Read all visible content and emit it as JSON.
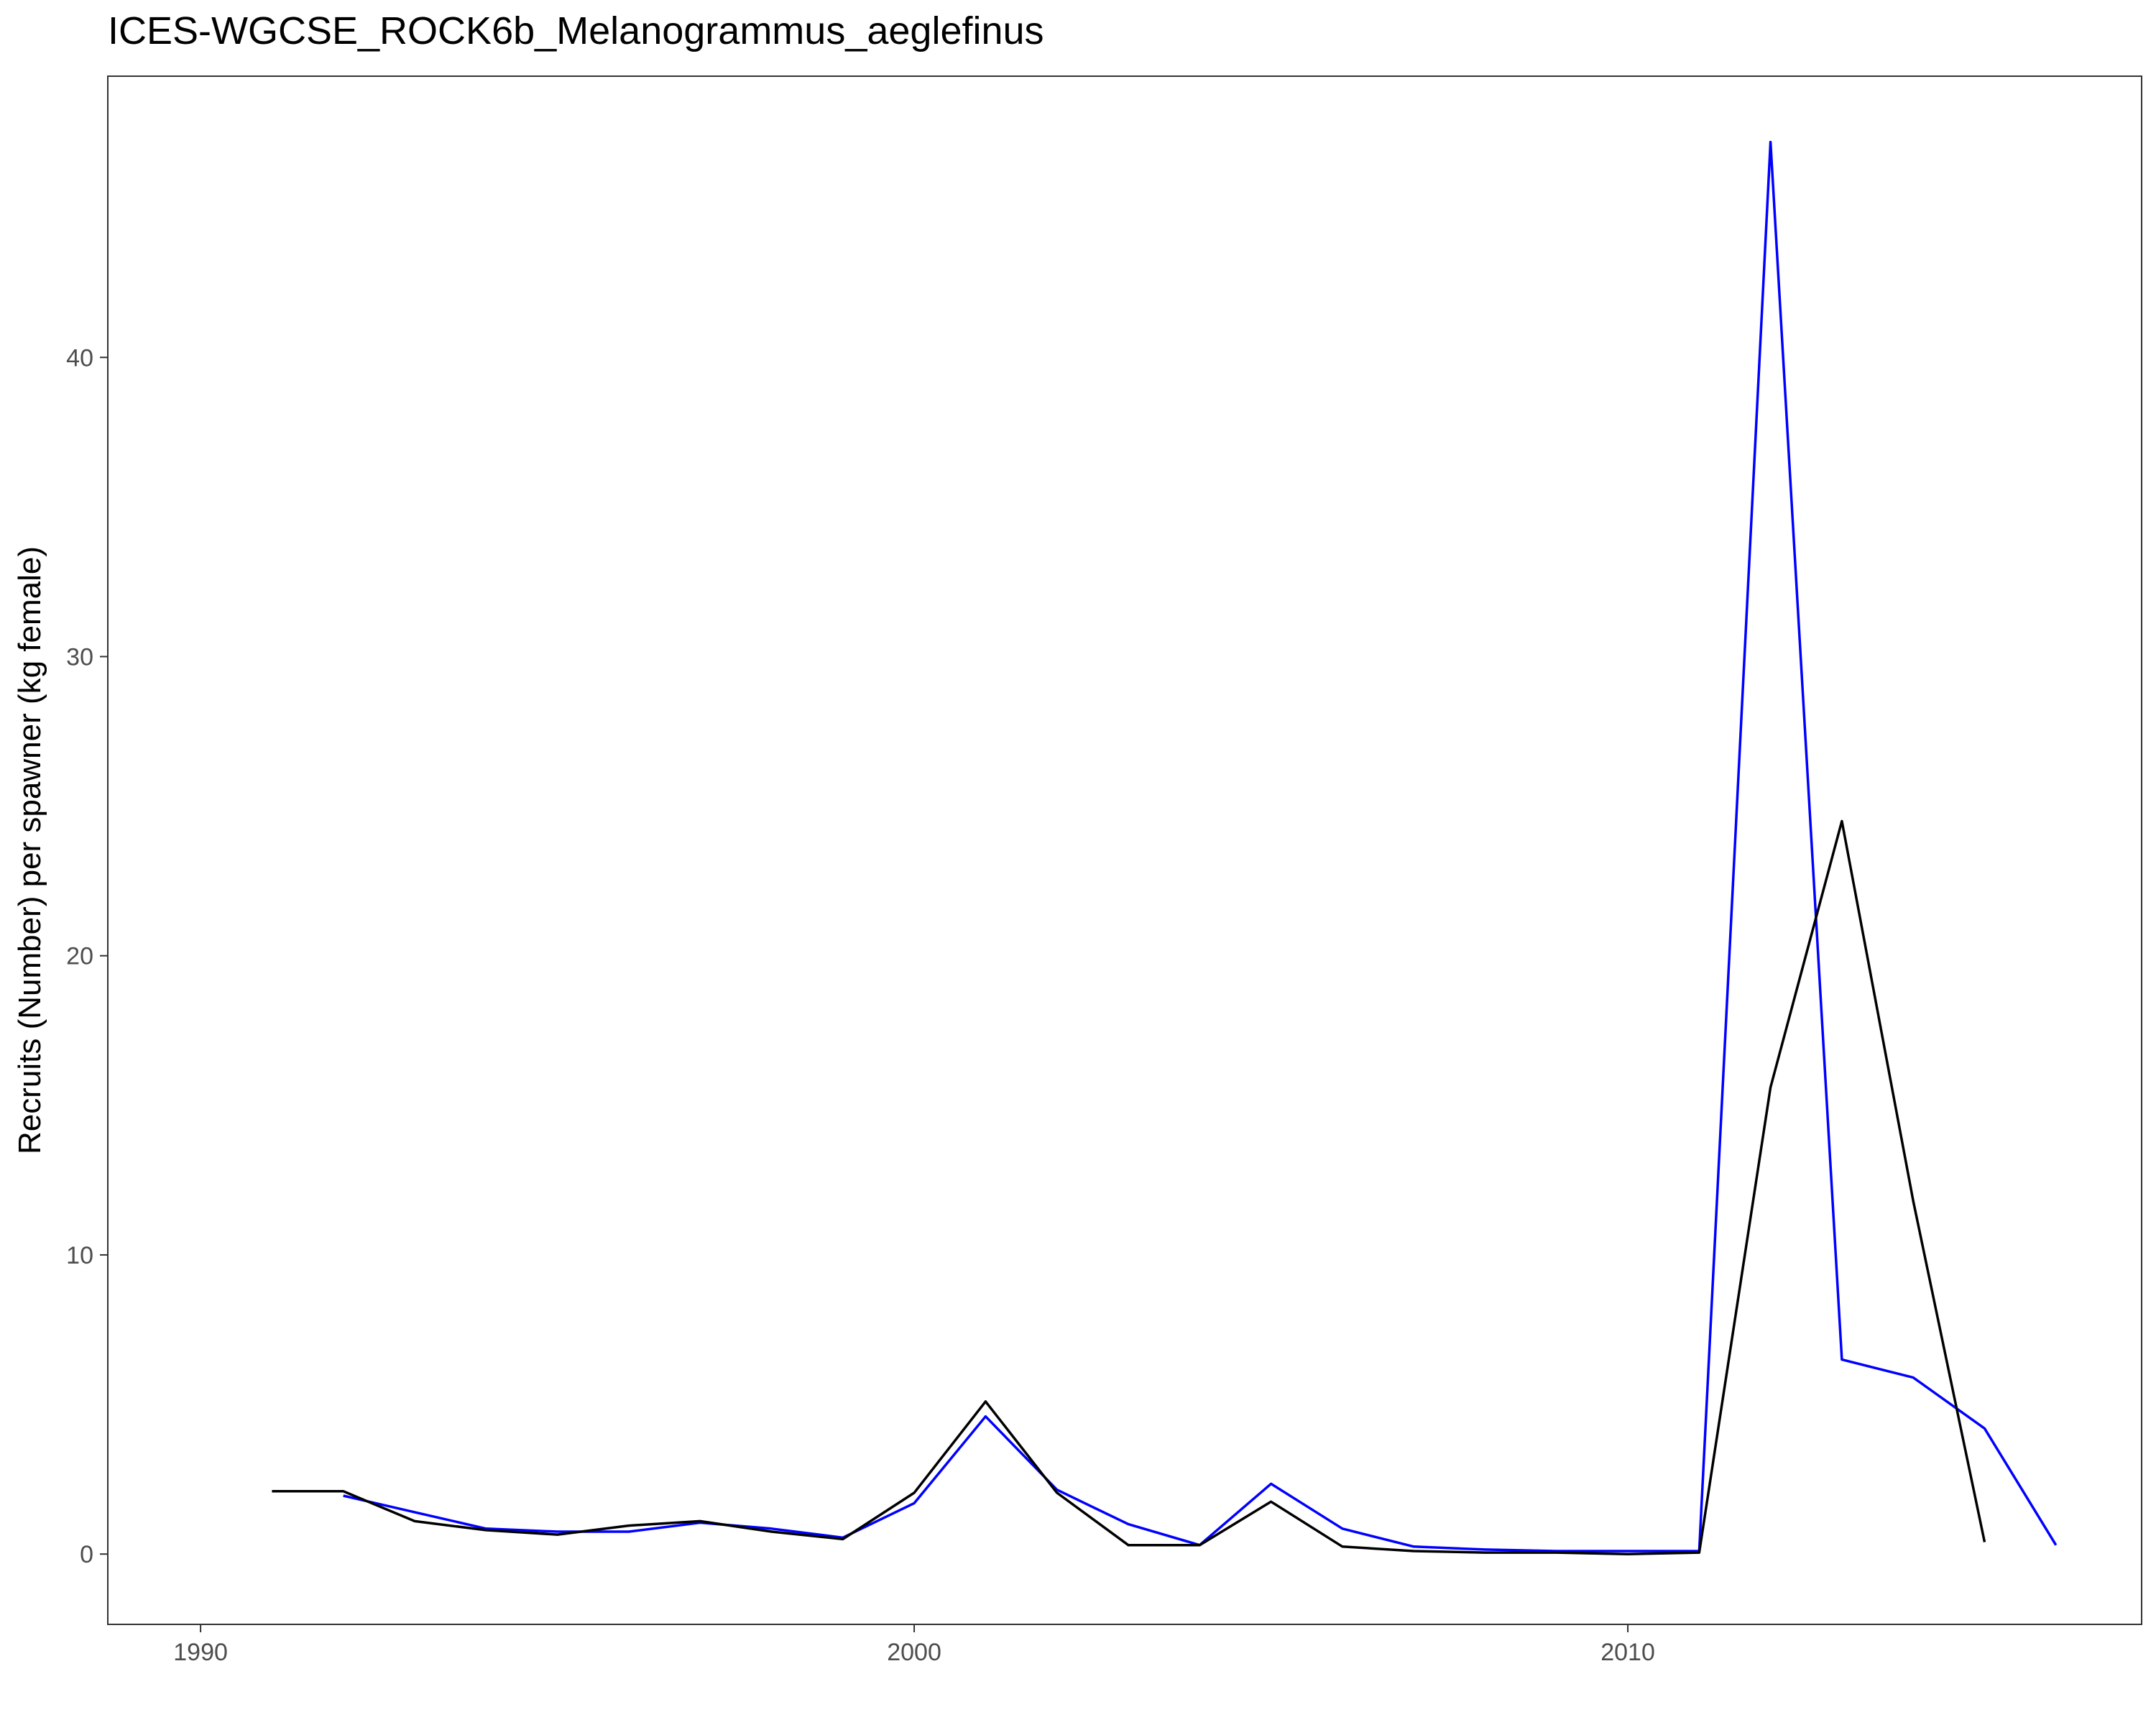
{
  "chart_data": {
    "type": "line",
    "title": "ICES-WGCSE_ROCK6b_Melanogrammus_aeglefinus",
    "xlabel": "",
    "ylabel": "Recruits (Number) per spawner (kg female)",
    "xlim": [
      1988.7,
      2017.2
    ],
    "ylim": [
      -2.35,
      49.4
    ],
    "x_ticks": [
      1990,
      2000,
      2010
    ],
    "y_ticks": [
      0,
      10,
      20,
      30,
      40
    ],
    "grid": false,
    "legend": "none",
    "series": [
      {
        "color": "#0000ff",
        "x": [
          1992,
          1993,
          1994,
          1995,
          1996,
          1997,
          1998,
          1999,
          2000,
          2001,
          2002,
          2003,
          2004,
          2005,
          2006,
          2007,
          2008,
          2009,
          2010,
          2011,
          2012,
          2013,
          2014,
          2015,
          2016
        ],
        "y": [
          1.95,
          1.4,
          0.85,
          0.75,
          0.75,
          1.05,
          0.85,
          0.55,
          1.7,
          4.6,
          2.15,
          1.0,
          0.3,
          2.35,
          0.85,
          0.25,
          0.15,
          0.1,
          0.1,
          0.1,
          47.2,
          6.5,
          5.9,
          4.2,
          0.3
        ]
      },
      {
        "color": "#000000",
        "x": [
          1991,
          1992,
          1993,
          1994,
          1995,
          1996,
          1997,
          1998,
          1999,
          2000,
          2001,
          2002,
          2003,
          2004,
          2005,
          2006,
          2007,
          2008,
          2009,
          2010,
          2011,
          2012,
          2013,
          2014,
          2015
        ],
        "y": [
          2.1,
          2.1,
          1.1,
          0.8,
          0.65,
          0.95,
          1.1,
          0.75,
          0.5,
          2.05,
          5.1,
          2.05,
          0.3,
          0.3,
          1.75,
          0.25,
          0.1,
          0.05,
          0.05,
          0.0,
          0.05,
          15.6,
          24.5,
          11.8,
          0.4
        ]
      }
    ]
  }
}
